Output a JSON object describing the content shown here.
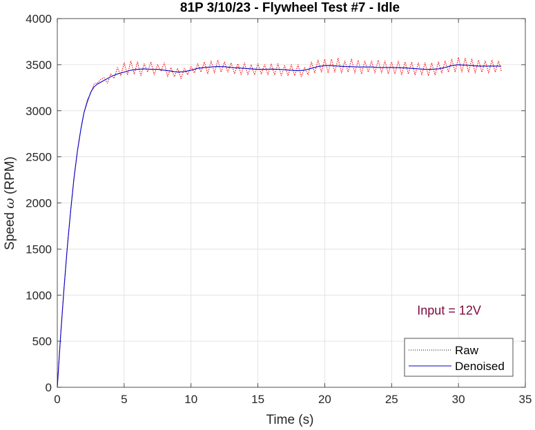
{
  "chart_data": {
    "type": "line",
    "title": "81P 3/10/23 - Flywheel Test #7 - Idle",
    "xlabel": "Time (s)",
    "ylabel_prefix": "Speed ",
    "ylabel_symbol": "ω",
    "ylabel_suffix": " (RPM)",
    "xlim": [
      0,
      35
    ],
    "ylim": [
      0,
      4000
    ],
    "xticks": [
      0,
      5,
      10,
      15,
      20,
      25,
      30,
      35
    ],
    "yticks": [
      0,
      500,
      1000,
      1500,
      2000,
      2500,
      3000,
      3500,
      4000
    ],
    "grid": true,
    "legend_position": "bottom-right",
    "annotation": {
      "text": "Input = 12V",
      "x": 29.3,
      "y": 790,
      "color": "#7a0a3c"
    },
    "series": [
      {
        "name": "Raw",
        "color": "#ff0000",
        "style": "dotted",
        "legend_color": "#000000",
        "x": [
          0,
          0.25,
          0.5,
          0.75,
          1.0,
          1.25,
          1.5,
          1.75,
          2.0,
          2.25,
          2.5,
          2.75,
          3.0,
          3.25,
          3.5,
          3.75,
          4.0,
          4.25,
          4.5,
          4.75,
          5.0,
          5.25,
          5.5,
          5.75,
          6.0,
          6.25,
          6.5,
          6.75,
          7.0,
          7.25,
          7.5,
          7.75,
          8.0,
          8.25,
          8.5,
          8.75,
          9.0,
          9.25,
          9.5,
          9.75,
          10.0,
          10.25,
          10.5,
          10.75,
          11.0,
          11.25,
          11.5,
          11.75,
          12.0,
          12.25,
          12.5,
          12.75,
          13.0,
          13.25,
          13.5,
          13.75,
          14.0,
          14.25,
          14.5,
          14.75,
          15.0,
          15.25,
          15.5,
          15.75,
          16.0,
          16.25,
          16.5,
          16.75,
          17.0,
          17.25,
          17.5,
          17.75,
          18.0,
          18.25,
          18.5,
          18.75,
          19.0,
          19.25,
          19.5,
          19.75,
          20.0,
          20.25,
          20.5,
          20.75,
          21.0,
          21.25,
          21.5,
          21.75,
          22.0,
          22.25,
          22.5,
          22.75,
          23.0,
          23.25,
          23.5,
          23.75,
          24.0,
          24.25,
          24.5,
          24.75,
          25.0,
          25.25,
          25.5,
          25.75,
          26.0,
          26.25,
          26.5,
          26.75,
          27.0,
          27.25,
          27.5,
          27.75,
          28.0,
          28.25,
          28.5,
          28.75,
          29.0,
          29.25,
          29.5,
          29.75,
          30.0,
          30.25,
          30.5,
          30.75,
          31.0,
          31.25,
          31.5,
          31.75,
          32.0,
          32.25,
          32.5,
          32.75,
          33.0,
          33.2
        ],
        "y": [
          0,
          560,
          1070,
          1520,
          1920,
          2270,
          2560,
          2790,
          2980,
          3120,
          3190,
          3290,
          3300,
          3340,
          3360,
          3300,
          3400,
          3350,
          3470,
          3380,
          3520,
          3390,
          3540,
          3400,
          3530,
          3380,
          3510,
          3420,
          3530,
          3390,
          3500,
          3430,
          3520,
          3370,
          3470,
          3370,
          3460,
          3350,
          3460,
          3390,
          3480,
          3410,
          3510,
          3420,
          3530,
          3400,
          3540,
          3410,
          3550,
          3420,
          3530,
          3420,
          3520,
          3400,
          3510,
          3390,
          3520,
          3390,
          3500,
          3390,
          3510,
          3400,
          3500,
          3390,
          3510,
          3390,
          3510,
          3380,
          3490,
          3380,
          3500,
          3380,
          3500,
          3370,
          3470,
          3390,
          3530,
          3410,
          3550,
          3420,
          3560,
          3410,
          3560,
          3420,
          3570,
          3410,
          3540,
          3420,
          3560,
          3410,
          3550,
          3400,
          3540,
          3420,
          3540,
          3410,
          3550,
          3410,
          3540,
          3400,
          3530,
          3400,
          3540,
          3390,
          3530,
          3400,
          3530,
          3390,
          3520,
          3390,
          3520,
          3380,
          3520,
          3390,
          3530,
          3410,
          3540,
          3420,
          3560,
          3420,
          3580,
          3420,
          3570,
          3420,
          3560,
          3410,
          3550,
          3420,
          3540,
          3410,
          3550,
          3420,
          3540,
          3430
        ]
      },
      {
        "name": "Denoised",
        "color": "#0000cc",
        "style": "solid",
        "legend_color": "#0000cc",
        "x": [
          0,
          0.25,
          0.5,
          0.75,
          1.0,
          1.25,
          1.5,
          1.75,
          2.0,
          2.25,
          2.5,
          2.75,
          3.0,
          3.5,
          4.0,
          4.5,
          5.0,
          5.5,
          6.0,
          6.5,
          7.0,
          7.5,
          8.0,
          8.5,
          9.0,
          9.5,
          10.0,
          10.5,
          11.0,
          11.5,
          12.0,
          12.5,
          13.0,
          13.5,
          14.0,
          14.5,
          15.0,
          15.5,
          16.0,
          16.5,
          17.0,
          17.5,
          18.0,
          18.5,
          19.0,
          19.5,
          20.0,
          20.5,
          21.0,
          21.5,
          22.0,
          22.5,
          23.0,
          23.5,
          24.0,
          24.5,
          25.0,
          25.5,
          26.0,
          26.5,
          27.0,
          27.5,
          28.0,
          28.5,
          29.0,
          29.5,
          30.0,
          30.5,
          31.0,
          31.5,
          32.0,
          32.5,
          33.0,
          33.2
        ],
        "y": [
          0,
          560,
          1070,
          1520,
          1920,
          2270,
          2560,
          2790,
          2980,
          3100,
          3200,
          3260,
          3290,
          3330,
          3370,
          3400,
          3420,
          3440,
          3450,
          3455,
          3450,
          3450,
          3440,
          3430,
          3420,
          3425,
          3440,
          3460,
          3470,
          3475,
          3480,
          3478,
          3470,
          3465,
          3460,
          3455,
          3450,
          3450,
          3452,
          3450,
          3445,
          3440,
          3435,
          3440,
          3460,
          3480,
          3490,
          3490,
          3485,
          3480,
          3478,
          3475,
          3475,
          3475,
          3470,
          3470,
          3470,
          3468,
          3465,
          3460,
          3455,
          3450,
          3450,
          3455,
          3470,
          3490,
          3500,
          3495,
          3490,
          3485,
          3485,
          3485,
          3485,
          3485
        ]
      }
    ]
  }
}
